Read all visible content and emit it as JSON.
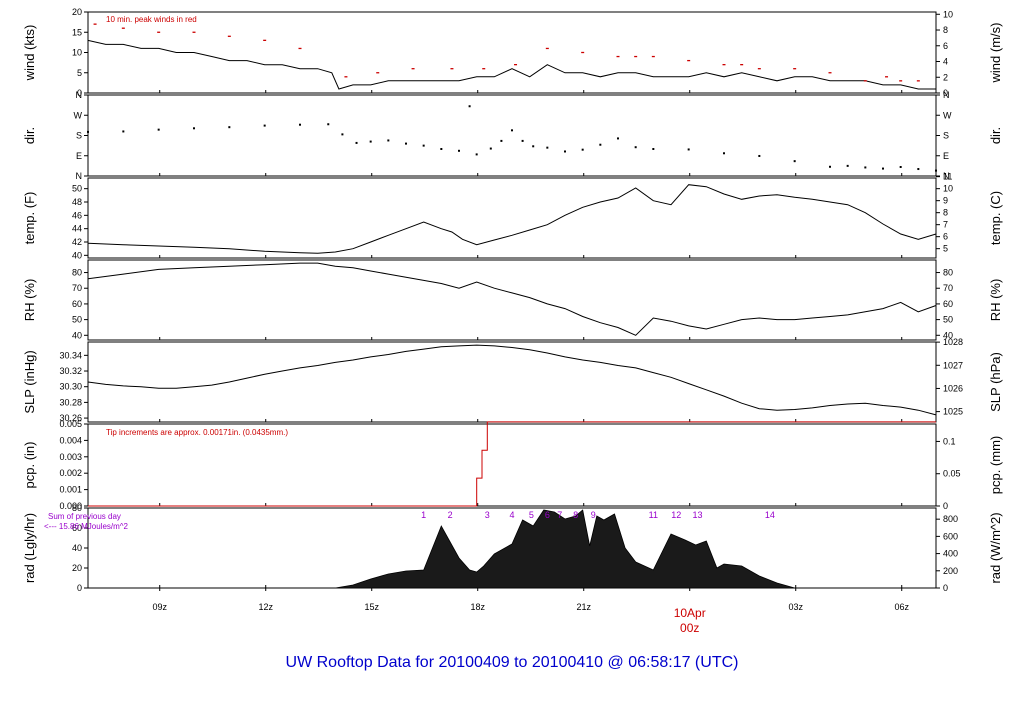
{
  "figure": {
    "footer_title": "UW Rooftop Data for 20100409  to  20100410 @ 06:58:17  (UTC)"
  },
  "x_axis": {
    "unit": "hours UTC from 2010-04-09 06:58:17",
    "range": [
      0,
      24.0
    ],
    "tick_labels": [
      "09z",
      "12z",
      "15z",
      "18z",
      "21z",
      "00z",
      "03z",
      "06z"
    ],
    "tick_values": [
      2.03,
      5.03,
      8.03,
      11.03,
      14.03,
      17.03,
      20.03,
      23.03
    ],
    "date_label": "10Apr",
    "date_label_color": "#cc0000"
  },
  "colors": {
    "trace": "#000000",
    "peak": "#cc0000",
    "precip": "#cc0000",
    "annotation_purple": "#9900cc",
    "footer": "#0000cc"
  },
  "chart_data": [
    {
      "id": "wind",
      "type": "line",
      "ylabel": "wind (kts)",
      "ylabel_right": "wind (m/s)",
      "ylim": [
        0,
        20
      ],
      "yticks": [
        0,
        5,
        10,
        15,
        20
      ],
      "yticks_right": [
        0,
        2,
        4,
        6,
        8,
        10
      ],
      "annotation": "10 min. peak winds in red",
      "series": [
        {
          "x": [
            0,
            0.5,
            1,
            1.5,
            2,
            2.5,
            3,
            3.5,
            4,
            4.5,
            5,
            5.5,
            6,
            6.5,
            6.9,
            7.1,
            7.5,
            8,
            8.5,
            9,
            9.5,
            10,
            10.5,
            11,
            11.5,
            12,
            12.5,
            13,
            13.5,
            14,
            14.5,
            15,
            15.5,
            16,
            16.5,
            17,
            17.5,
            18,
            18.5,
            19,
            19.5,
            20,
            20.5,
            21,
            21.5,
            22,
            22.5,
            23,
            23.5,
            24
          ],
          "y": [
            13,
            12,
            12,
            11,
            11,
            10,
            10,
            9,
            8,
            8,
            7,
            7,
            6,
            6,
            5,
            1,
            2,
            2,
            3,
            3,
            3,
            3,
            3,
            4,
            4,
            6,
            4,
            7,
            5,
            5,
            4,
            5,
            5,
            4,
            4,
            4,
            5,
            4,
            5,
            4,
            3,
            4,
            4,
            3,
            3,
            3,
            2,
            2,
            1,
            1
          ]
        },
        {
          "name": "10 min. peak winds",
          "x": [
            0.2,
            1,
            2,
            3,
            4,
            5,
            6,
            7.3,
            8.2,
            9.2,
            10.3,
            11.2,
            12.1,
            13,
            14,
            15,
            15.5,
            16,
            17,
            18,
            18.5,
            19,
            20,
            21,
            22,
            22.6,
            23,
            23.5
          ],
          "y": [
            17,
            16,
            15,
            15,
            14,
            13,
            11,
            4,
            5,
            6,
            6,
            6,
            7,
            11,
            10,
            9,
            9,
            9,
            8,
            7,
            7,
            6,
            6,
            5,
            3,
            4,
            3,
            3
          ]
        }
      ]
    },
    {
      "id": "dir",
      "type": "scatter",
      "ylabel": "dir.",
      "ylabel_right": "dir.",
      "ytick_labels": [
        "N",
        "E",
        "S",
        "W",
        "N"
      ],
      "ylim": [
        0,
        360
      ],
      "yticks": [
        0,
        90,
        180,
        270,
        360
      ],
      "x": [
        0,
        1,
        2,
        3,
        4,
        5,
        6,
        6.8,
        7.2,
        7.6,
        8,
        8.5,
        9,
        9.5,
        10,
        10.5,
        10.8,
        11,
        11.4,
        11.7,
        12,
        12.3,
        12.6,
        13,
        13.5,
        14,
        14.5,
        15,
        15.5,
        16,
        17,
        18,
        19,
        20,
        21,
        21.5,
        22,
        22.5,
        23,
        23.5,
        24
      ],
      "y": [
        196,
        198,
        206,
        212,
        217,
        224,
        228,
        230,
        185,
        147,
        153,
        158,
        144,
        135,
        120,
        112,
        310,
        96,
        122,
        156,
        203,
        156,
        132,
        126,
        109,
        117,
        139,
        167,
        128,
        120,
        118,
        101,
        89,
        66,
        41,
        45,
        38,
        33,
        40,
        31,
        24
      ]
    },
    {
      "id": "temp",
      "type": "line",
      "ylabel": "temp. (F)",
      "ylabel_right": "temp. (C)",
      "ylim": [
        39.6,
        51.6
      ],
      "yticks": [
        40,
        42,
        44,
        46,
        48,
        50
      ],
      "yticks_right": [
        5,
        6,
        7,
        8,
        9,
        10,
        11
      ],
      "x": [
        0,
        1,
        2,
        3,
        4,
        5,
        6,
        6.5,
        7,
        7.5,
        8,
        8.5,
        9,
        9.5,
        10,
        10.3,
        10.6,
        11,
        11.5,
        12,
        12.5,
        13,
        13.5,
        14,
        14.5,
        15,
        15.5,
        16,
        16.5,
        17,
        17.5,
        18,
        18.5,
        19,
        19.5,
        20,
        20.5,
        21,
        21.5,
        22,
        22.5,
        23,
        23.5,
        24
      ],
      "y": [
        41.8,
        41.6,
        41.4,
        41.2,
        41.0,
        40.6,
        40.4,
        40.3,
        40.5,
        41,
        42,
        43,
        44,
        45,
        44,
        43.5,
        42.4,
        41.6,
        42.3,
        43,
        43.8,
        44.6,
        46,
        47.2,
        48,
        48.6,
        50.1,
        48.2,
        47.6,
        50.6,
        50.3,
        49.2,
        48.4,
        48.9,
        49.1,
        48.7,
        48.4,
        48,
        47.6,
        46.4,
        44.7,
        43.2,
        42.4,
        43.2
      ]
    },
    {
      "id": "rh",
      "type": "line",
      "ylabel": "RH (%)",
      "ylabel_right": "RH (%)",
      "ylim": [
        37,
        88
      ],
      "yticks": [
        40,
        50,
        60,
        70,
        80
      ],
      "yticks_right": [
        40,
        50,
        60,
        70,
        80
      ],
      "x": [
        0,
        1,
        2,
        3,
        4,
        5,
        6,
        6.5,
        7,
        7.5,
        8,
        8.5,
        9,
        9.5,
        10,
        10.5,
        11,
        11.5,
        12,
        12.5,
        13,
        13.5,
        14,
        14.5,
        15,
        15.5,
        16,
        16.5,
        17,
        17.5,
        18,
        18.5,
        19,
        19.5,
        20,
        20.5,
        21,
        21.5,
        22,
        22.5,
        23,
        23.5,
        24
      ],
      "y": [
        76,
        79,
        82,
        83,
        84,
        85,
        86,
        86,
        84,
        83,
        81,
        79,
        77,
        75,
        73,
        70,
        74,
        70,
        67,
        64,
        60,
        57,
        52,
        48,
        45,
        40,
        51,
        49,
        46,
        44,
        47,
        50,
        51,
        50,
        50,
        51,
        52,
        53,
        55,
        57,
        61,
        55,
        59
      ]
    },
    {
      "id": "slp",
      "type": "line",
      "ylabel": "SLP (inHg)",
      "ylabel_right": "SLP (hPa)",
      "ylim": [
        30.255,
        30.357
      ],
      "yticks": [
        30.26,
        30.28,
        30.3,
        30.32,
        30.34
      ],
      "ytick_labels": [
        "30.26",
        "30.28",
        "30.30",
        "30.32",
        "30.34"
      ],
      "yticks_right": [
        1025,
        1026,
        1027,
        1028
      ],
      "x": [
        0,
        0.5,
        1,
        1.5,
        2,
        2.5,
        3,
        3.5,
        4,
        4.5,
        5,
        5.5,
        6,
        6.5,
        7,
        7.5,
        8,
        8.5,
        9,
        9.5,
        10,
        10.5,
        11,
        11.5,
        12,
        12.5,
        13,
        13.5,
        14,
        14.5,
        15,
        15.5,
        16,
        16.5,
        17,
        17.5,
        18,
        18.5,
        19,
        19.5,
        20,
        20.5,
        21,
        21.5,
        22,
        22.5,
        23,
        23.5,
        24
      ],
      "y": [
        30.306,
        30.303,
        30.301,
        30.3,
        30.298,
        30.298,
        30.3,
        30.302,
        30.306,
        30.311,
        30.316,
        30.32,
        30.324,
        30.327,
        30.331,
        30.334,
        30.338,
        30.341,
        30.345,
        30.348,
        30.351,
        30.352,
        30.353,
        30.352,
        30.35,
        30.347,
        30.343,
        30.338,
        30.334,
        30.331,
        30.327,
        30.324,
        30.318,
        30.312,
        30.304,
        30.296,
        30.288,
        30.279,
        30.272,
        30.27,
        30.271,
        30.273,
        30.276,
        30.278,
        30.279,
        30.276,
        30.274,
        30.27,
        30.264
      ]
    },
    {
      "id": "pcp",
      "type": "line",
      "ylabel": "pcp. (in)",
      "ylabel_right": "pcp. (mm)",
      "annotation": "Tip increments are approx. 0.00171in. (0.0435mm.)",
      "ylim": [
        0,
        0.005
      ],
      "yticks": [
        0.0,
        0.001,
        0.002,
        0.003,
        0.004,
        0.005
      ],
      "ytick_labels": [
        "0.000",
        "0.001",
        "0.002",
        "0.003",
        "0.004",
        "0.005"
      ],
      "yticks_right": [
        0,
        0.05,
        0.1
      ],
      "yticks_right_labels": [
        "0",
        "0.05",
        "0.1"
      ],
      "x": [
        0,
        11.0,
        11.0,
        11.15,
        11.15,
        11.3,
        11.3,
        24
      ],
      "y": [
        0,
        0,
        0.0017,
        0.0017,
        0.0034,
        0.0034,
        0.00513,
        0.00513
      ]
    },
    {
      "id": "rad",
      "type": "area",
      "ylabel": "rad (Lgly/hr)",
      "ylabel_right": "rad (W/m^2)",
      "annotation_line1": "Sum of previous day",
      "annotation_line2": "<--- 15.86 MJoules/m^2",
      "ylim": [
        0,
        80
      ],
      "yticks": [
        0,
        20,
        40,
        60,
        80
      ],
      "yticks_right": [
        0,
        200,
        400,
        600,
        800
      ],
      "x": [
        0,
        7,
        7.5,
        8,
        8.5,
        9,
        9.5,
        10,
        10.5,
        10.8,
        11,
        11.2,
        11.5,
        12,
        12.3,
        12.6,
        12.9,
        13.2,
        13.5,
        13.8,
        14,
        14.2,
        14.4,
        14.6,
        14.9,
        15.2,
        15.5,
        16,
        16.5,
        16.9,
        17.2,
        17.5,
        17.8,
        18,
        18.5,
        19,
        19.5,
        20,
        24
      ],
      "y": [
        0,
        0,
        3,
        9,
        14,
        17,
        18,
        62,
        30,
        18,
        16,
        22,
        34,
        44,
        68,
        62,
        78,
        76,
        69,
        72,
        78,
        42,
        72,
        68,
        74,
        40,
        26,
        18,
        54,
        48,
        43,
        47,
        20,
        24,
        22,
        12,
        5,
        0,
        0
      ],
      "event_markers": [
        {
          "label": "1",
          "x": 9.5
        },
        {
          "label": "2",
          "x": 10.25
        },
        {
          "label": "3",
          "x": 11.3
        },
        {
          "label": "4",
          "x": 12.0
        },
        {
          "label": "5",
          "x": 12.55
        },
        {
          "label": "6",
          "x": 13.0
        },
        {
          "label": "7",
          "x": 13.35
        },
        {
          "label": "8",
          "x": 13.8
        },
        {
          "label": "9",
          "x": 14.3
        },
        {
          "label": "11",
          "x": 16.0
        },
        {
          "label": "12",
          "x": 16.65
        },
        {
          "label": "13",
          "x": 17.25
        },
        {
          "label": "14",
          "x": 19.3
        }
      ]
    }
  ]
}
